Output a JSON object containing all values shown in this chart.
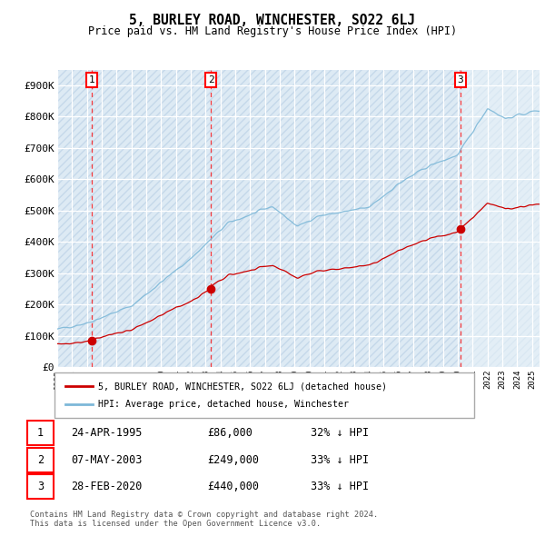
{
  "title": "5, BURLEY ROAD, WINCHESTER, SO22 6LJ",
  "subtitle": "Price paid vs. HM Land Registry's House Price Index (HPI)",
  "hpi_color": "#7db8d8",
  "price_color": "#cc0000",
  "marker_color": "#cc0000",
  "ylim": [
    0,
    950000
  ],
  "yticks": [
    0,
    100000,
    200000,
    300000,
    400000,
    500000,
    600000,
    700000,
    800000,
    900000
  ],
  "ytick_labels": [
    "£0",
    "£100K",
    "£200K",
    "£300K",
    "£400K",
    "£500K",
    "£600K",
    "£700K",
    "£800K",
    "£900K"
  ],
  "sales": [
    {
      "label": "1",
      "date_num": 1995.31,
      "price": 86000,
      "price_str": "£86,000",
      "date_str": "24-APR-1995",
      "pct": "32% ↓ HPI"
    },
    {
      "label": "2",
      "date_num": 2003.35,
      "price": 249000,
      "price_str": "£249,000",
      "date_str": "07-MAY-2003",
      "pct": "33% ↓ HPI"
    },
    {
      "label": "3",
      "date_num": 2020.16,
      "price": 440000,
      "price_str": "£440,000",
      "date_str": "28-FEB-2020",
      "pct": "33% ↓ HPI"
    }
  ],
  "legend_label1": "5, BURLEY ROAD, WINCHESTER, SO22 6LJ (detached house)",
  "legend_label2": "HPI: Average price, detached house, Winchester",
  "footnote": "Contains HM Land Registry data © Crown copyright and database right 2024.\nThis data is licensed under the Open Government Licence v3.0.",
  "hatch_color": "#c5d8ea",
  "bg_color": "#ddeaf4",
  "grid_color": "#ffffff",
  "xmin": 1993.0,
  "xmax": 2025.5
}
